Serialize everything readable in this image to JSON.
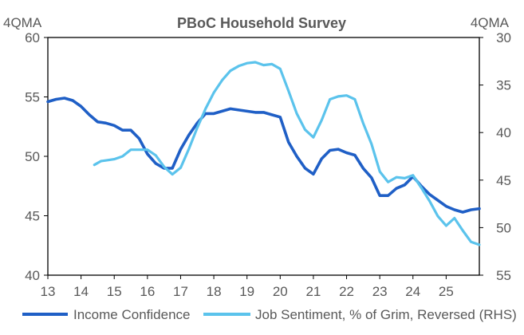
{
  "chart_data": {
    "type": "line",
    "title": "PBoC Household Survey",
    "left_axis_label": "4QMA",
    "right_axis_label": "4QMA",
    "left_ylim": [
      40,
      60
    ],
    "left_yticks": [
      "60",
      "55",
      "50",
      "45",
      "40"
    ],
    "right_ylim": [
      30,
      55
    ],
    "right_reversed": true,
    "right_yticks": [
      "30",
      "35",
      "40",
      "45",
      "50",
      "55"
    ],
    "xlim": [
      2013,
      2026
    ],
    "xtick_values": [
      2013,
      2014,
      2015,
      2016,
      2017,
      2018,
      2019,
      2020,
      2021,
      2022,
      2023,
      2024,
      2025
    ],
    "xtick_labels": [
      "13",
      "14",
      "15",
      "16",
      "17",
      "18",
      "19",
      "20",
      "21",
      "22",
      "23",
      "24",
      "25"
    ],
    "series": [
      {
        "name": "Income Confidence",
        "axis": "left",
        "color": "#1f5fc6",
        "x": [
          2013.0,
          2013.25,
          2013.5,
          2013.75,
          2014.0,
          2014.25,
          2014.5,
          2014.75,
          2015.0,
          2015.25,
          2015.5,
          2015.75,
          2016.0,
          2016.25,
          2016.5,
          2016.75,
          2017.0,
          2017.25,
          2017.5,
          2017.75,
          2018.0,
          2018.25,
          2018.5,
          2018.75,
          2019.0,
          2019.25,
          2019.5,
          2019.75,
          2020.0,
          2020.25,
          2020.5,
          2020.75,
          2021.0,
          2021.25,
          2021.5,
          2021.75,
          2022.0,
          2022.25,
          2022.5,
          2022.75,
          2023.0,
          2023.25,
          2023.5,
          2023.75,
          2024.0,
          2024.25,
          2024.5,
          2024.75,
          2025.0,
          2025.25,
          2025.5,
          2025.75,
          2026.0
        ],
        "values": [
          54.6,
          54.8,
          54.9,
          54.7,
          54.2,
          53.5,
          52.9,
          52.8,
          52.6,
          52.2,
          52.2,
          51.5,
          50.2,
          49.4,
          49.0,
          49.0,
          50.6,
          51.8,
          52.8,
          53.6,
          53.6,
          53.8,
          54.0,
          53.9,
          53.8,
          53.7,
          53.7,
          53.5,
          53.3,
          51.2,
          50.0,
          49.0,
          48.5,
          49.8,
          50.5,
          50.6,
          50.3,
          50.1,
          49.0,
          48.2,
          46.7,
          46.7,
          47.3,
          47.6,
          48.3,
          47.5,
          46.8,
          46.3,
          45.8,
          45.5,
          45.3,
          45.5,
          45.6
        ]
      },
      {
        "name": "Job Sentiment, % of Grim, Reversed (RHS)",
        "axis": "right",
        "color": "#5bc3ec",
        "x": [
          2014.4,
          2014.6,
          2014.8,
          2015.0,
          2015.25,
          2015.5,
          2015.75,
          2016.0,
          2016.25,
          2016.5,
          2016.75,
          2017.0,
          2017.25,
          2017.5,
          2017.75,
          2018.0,
          2018.25,
          2018.5,
          2018.75,
          2019.0,
          2019.25,
          2019.5,
          2019.75,
          2020.0,
          2020.25,
          2020.5,
          2020.75,
          2021.0,
          2021.25,
          2021.5,
          2021.75,
          2022.0,
          2022.25,
          2022.5,
          2022.75,
          2023.0,
          2023.25,
          2023.5,
          2023.75,
          2024.0,
          2024.25,
          2024.5,
          2024.75,
          2025.0,
          2025.25,
          2025.5,
          2025.75,
          2026.0
        ],
        "values": [
          43.4,
          43.0,
          42.9,
          42.8,
          42.5,
          41.8,
          41.8,
          41.8,
          42.4,
          43.6,
          44.4,
          43.7,
          41.7,
          39.5,
          37.5,
          35.8,
          34.5,
          33.5,
          33.0,
          32.7,
          32.6,
          32.9,
          32.8,
          33.3,
          35.6,
          38.0,
          39.7,
          40.5,
          38.7,
          36.5,
          36.2,
          36.1,
          36.5,
          39.0,
          41.2,
          44.1,
          45.2,
          44.7,
          44.8,
          44.5,
          45.8,
          47.2,
          48.8,
          49.8,
          49.0,
          50.3,
          51.5,
          51.8
        ]
      }
    ]
  }
}
